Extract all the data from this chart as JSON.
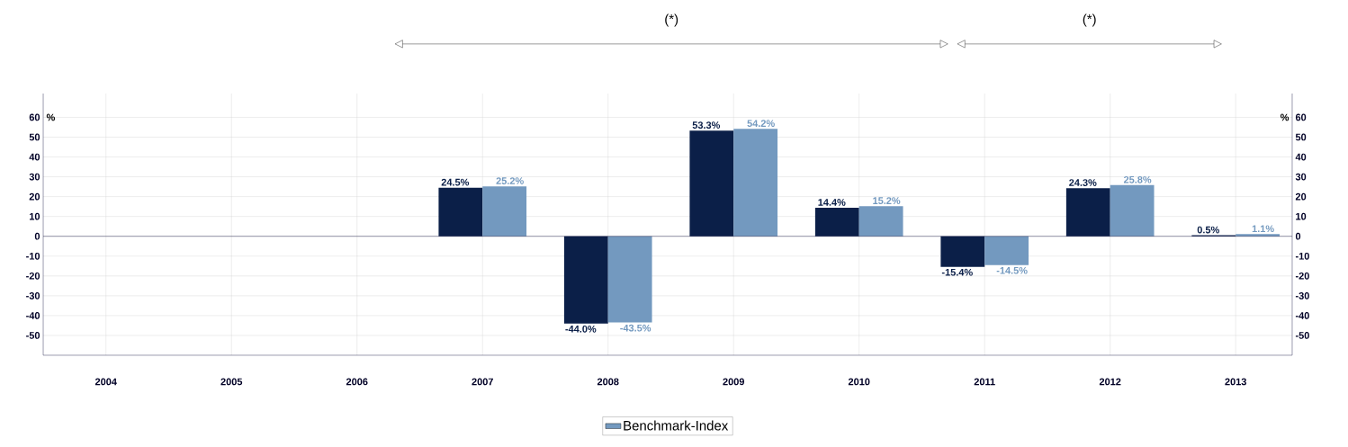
{
  "chart_data": {
    "type": "bar",
    "categories": [
      "2004",
      "2005",
      "2006",
      "2007",
      "2008",
      "2009",
      "2010",
      "2011",
      "2012",
      "2013"
    ],
    "series": [
      {
        "color": "#0b1f48",
        "values": [
          null,
          null,
          null,
          24.5,
          -44.0,
          53.3,
          14.4,
          -15.4,
          24.3,
          0.5
        ],
        "value_labels": [
          null,
          null,
          null,
          "24.5%",
          "-44.0%",
          "53.3%",
          "14.4%",
          "-15.4%",
          "24.3%",
          "0.5%"
        ]
      },
      {
        "name": "Benchmark-Index",
        "color": "#7399bf",
        "values": [
          null,
          null,
          null,
          25.2,
          -43.5,
          54.2,
          15.2,
          -14.5,
          25.8,
          1.1
        ],
        "value_labels": [
          null,
          null,
          null,
          "25.2%",
          "-43.5%",
          "54.2%",
          "15.2%",
          "-14.5%",
          "25.8%",
          "1.1%"
        ]
      }
    ],
    "ylabel": "%",
    "y2label": "%",
    "ylim": [
      -60,
      72
    ],
    "yticks": [
      -50,
      -40,
      -30,
      -20,
      -10,
      0,
      10,
      20,
      30,
      40,
      50,
      60
    ],
    "y2lim": [
      -60,
      72
    ],
    "y2ticks": [
      -50,
      -40,
      -30,
      -20,
      -10,
      0,
      10,
      20,
      30,
      40,
      50,
      60
    ],
    "annotations": [
      "(*)",
      "(*)"
    ],
    "grid": true,
    "legend": "bottom"
  }
}
